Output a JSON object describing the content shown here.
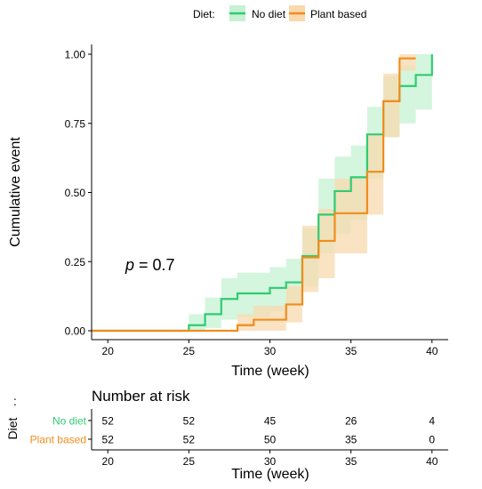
{
  "chart_data": {
    "type": "line",
    "subtype": "step-cumulative-incidence",
    "legend": {
      "title": "Diet:",
      "placement": "top",
      "entries": [
        "No diet",
        "Plant based"
      ]
    },
    "colors": {
      "No diet": "#2ECC71",
      "Plant based": "#F28C1C"
    },
    "fill_colors": {
      "No diet": "#C6F1D3",
      "Plant based": "#F8D9AE"
    },
    "xlabel": "Time (week)",
    "ylabel": "Cumulative event",
    "xlim": [
      19,
      41
    ],
    "ylim": [
      0,
      1
    ],
    "x_ticks": [
      20,
      25,
      30,
      35,
      40
    ],
    "y_ticks": [
      0,
      0.25,
      0.5,
      0.75,
      1
    ],
    "y_tick_labels": [
      "0.00",
      "0.25",
      "0.50",
      "0.75",
      "1.00"
    ],
    "annotation": {
      "prefix": "p",
      "text": " = 0.7",
      "x": 21,
      "y": 0.22
    },
    "series": [
      {
        "name": "No diet",
        "steps": [
          {
            "x": 19,
            "y": 0.0,
            "lo": 0.0,
            "hi": 0.0
          },
          {
            "x": 25,
            "y": 0.02,
            "lo": 0.0,
            "hi": 0.06
          },
          {
            "x": 26,
            "y": 0.06,
            "lo": 0.01,
            "hi": 0.12
          },
          {
            "x": 27,
            "y": 0.115,
            "lo": 0.04,
            "hi": 0.19
          },
          {
            "x": 28,
            "y": 0.135,
            "lo": 0.05,
            "hi": 0.21
          },
          {
            "x": 30,
            "y": 0.155,
            "lo": 0.07,
            "hi": 0.23
          },
          {
            "x": 31,
            "y": 0.175,
            "lo": 0.09,
            "hi": 0.26
          },
          {
            "x": 32,
            "y": 0.27,
            "lo": 0.16,
            "hi": 0.37
          },
          {
            "x": 33,
            "y": 0.42,
            "lo": 0.28,
            "hi": 0.55
          },
          {
            "x": 34,
            "y": 0.505,
            "lo": 0.35,
            "hi": 0.63
          },
          {
            "x": 35,
            "y": 0.555,
            "lo": 0.4,
            "hi": 0.67
          },
          {
            "x": 36,
            "y": 0.71,
            "lo": 0.55,
            "hi": 0.81
          },
          {
            "x": 37,
            "y": 0.83,
            "lo": 0.7,
            "hi": 0.92
          },
          {
            "x": 38,
            "y": 0.885,
            "lo": 0.75,
            "hi": 0.96
          },
          {
            "x": 39,
            "y": 0.925,
            "lo": 0.8,
            "hi": 1.0
          },
          {
            "x": 40,
            "y": 1.0,
            "lo": 1.0,
            "hi": 1.0
          }
        ]
      },
      {
        "name": "Plant based",
        "steps": [
          {
            "x": 19,
            "y": 0.0,
            "lo": 0.0,
            "hi": 0.0
          },
          {
            "x": 28,
            "y": 0.02,
            "lo": 0.0,
            "hi": 0.06
          },
          {
            "x": 29,
            "y": 0.04,
            "lo": 0.0,
            "hi": 0.09
          },
          {
            "x": 31,
            "y": 0.095,
            "lo": 0.03,
            "hi": 0.16
          },
          {
            "x": 32,
            "y": 0.265,
            "lo": 0.14,
            "hi": 0.38
          },
          {
            "x": 33,
            "y": 0.325,
            "lo": 0.19,
            "hi": 0.44
          },
          {
            "x": 34,
            "y": 0.425,
            "lo": 0.28,
            "hi": 0.55
          },
          {
            "x": 36,
            "y": 0.575,
            "lo": 0.42,
            "hi": 0.71
          },
          {
            "x": 37,
            "y": 0.83,
            "lo": 0.7,
            "hi": 0.93
          },
          {
            "x": 38,
            "y": 0.985,
            "lo": 0.94,
            "hi": 1.0
          },
          {
            "x": 39,
            "y": 0.985,
            "lo": 0.94,
            "hi": 1.0
          }
        ]
      }
    ]
  },
  "risk_table": {
    "title": "Number at risk",
    "group_label": "Diet",
    "xlabel": "Time (week)",
    "x_ticks": [
      20,
      25,
      30,
      35,
      40
    ],
    "rows": [
      {
        "name": "No diet",
        "values": [
          52,
          52,
          45,
          26,
          4
        ]
      },
      {
        "name": "Plant based",
        "values": [
          52,
          52,
          50,
          35,
          0
        ]
      }
    ]
  }
}
